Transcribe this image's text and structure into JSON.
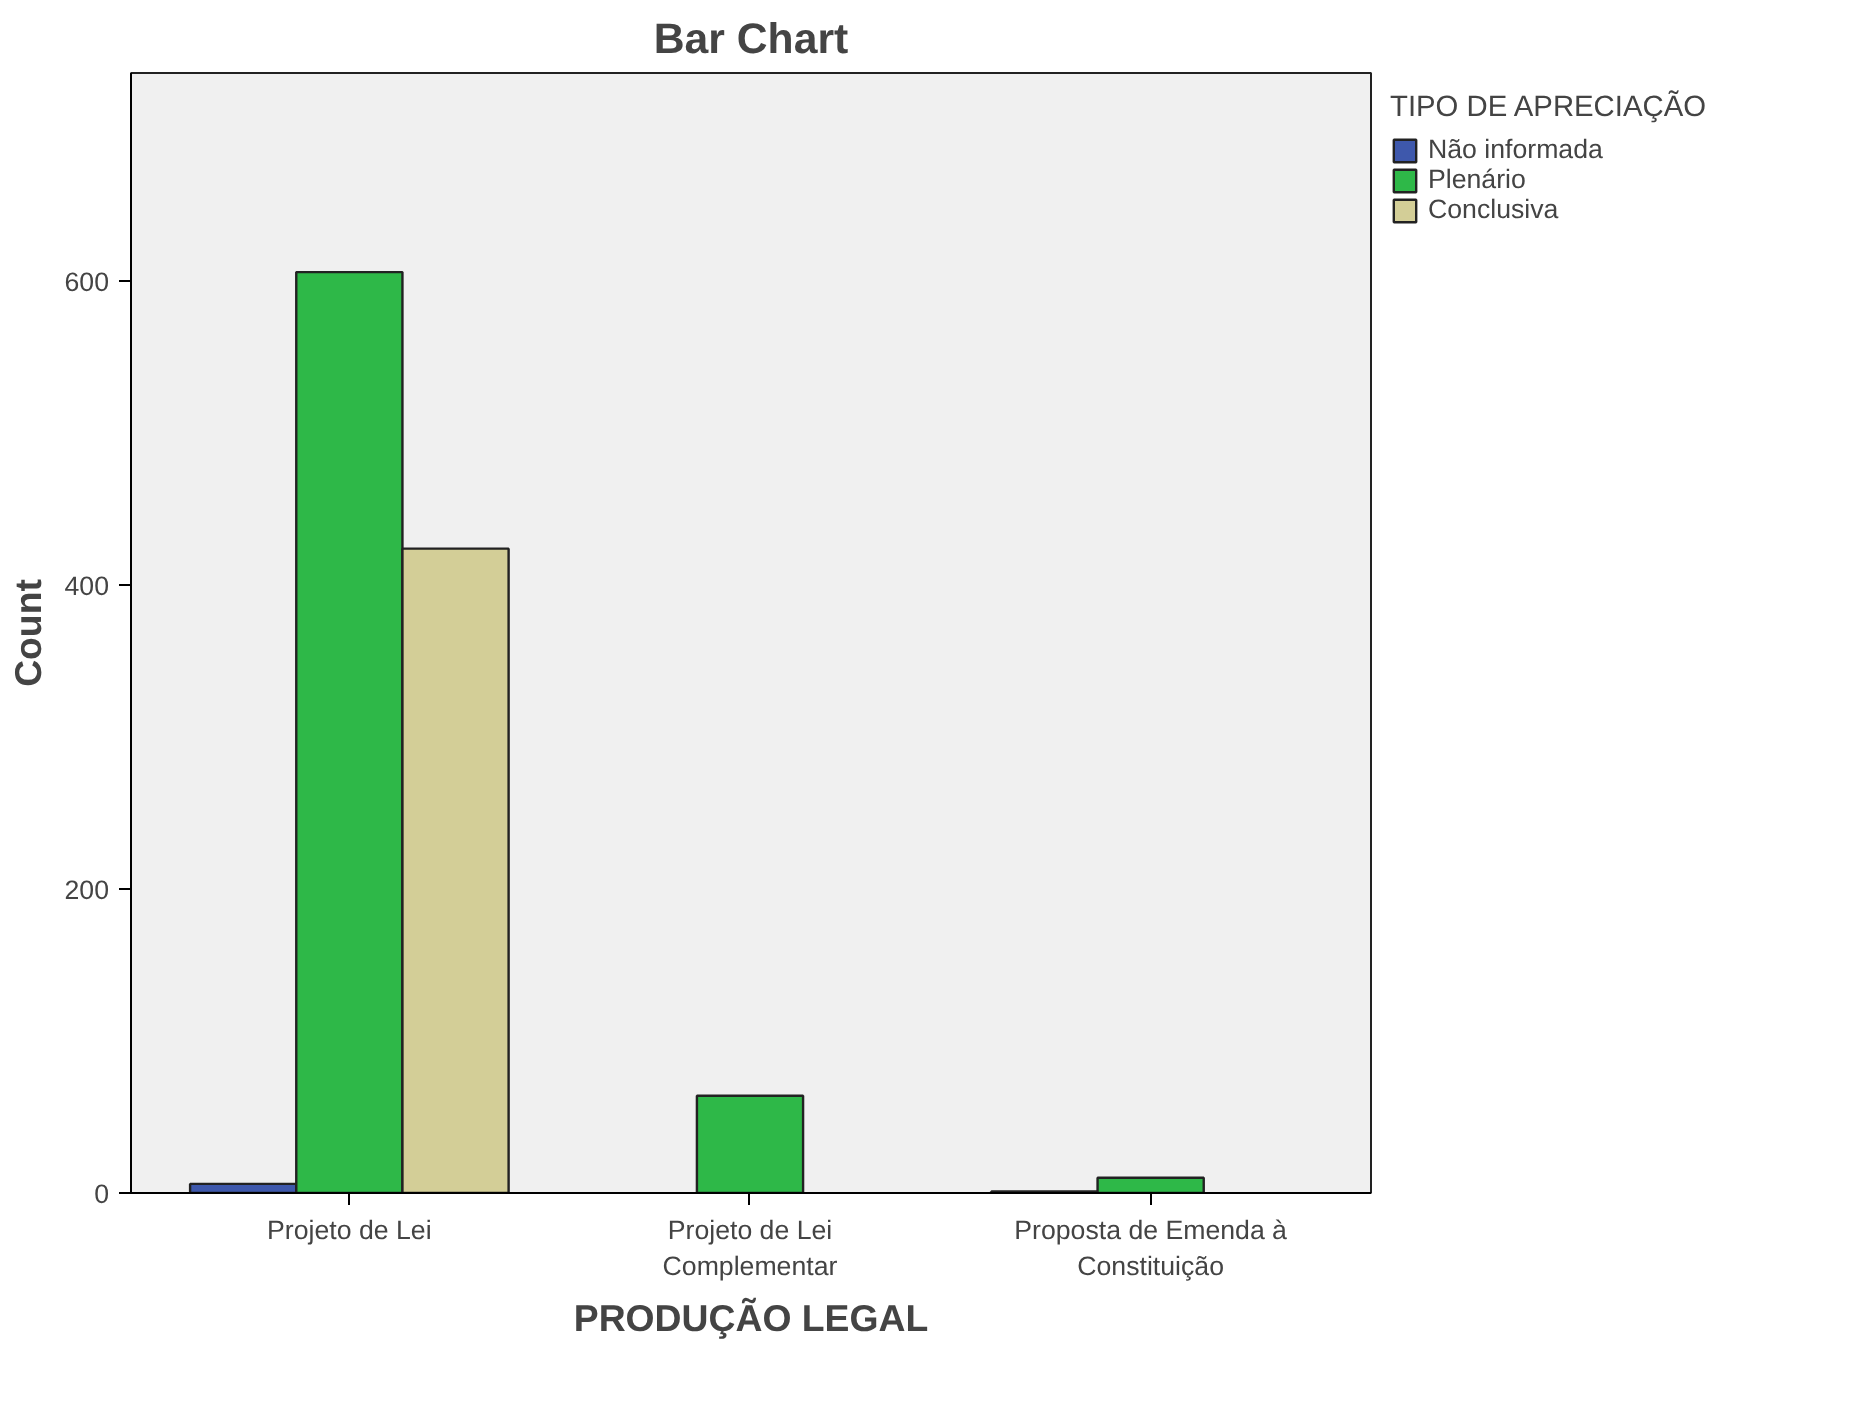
{
  "chart_data": {
    "type": "bar",
    "title": "Bar Chart",
    "xlabel": "PRODUÇÃO LEGAL",
    "ylabel": "Count",
    "legend_title": "TIPO DE APRECIAÇÃO",
    "categories": [
      "Projeto de Lei",
      "Projeto de Lei Complementar",
      "Proposta de Emenda à Constituição"
    ],
    "series": [
      {
        "name": "Não informada",
        "color": "#3e58ac",
        "values": [
          6,
          null,
          1
        ]
      },
      {
        "name": "Plenário",
        "color": "#2eb848",
        "values": [
          606,
          64,
          10
        ]
      },
      {
        "name": "Conclusiva",
        "color": "#d3ce97",
        "values": [
          424,
          null,
          null
        ]
      }
    ],
    "ylim": [
      0,
      737
    ],
    "yticks": [
      0,
      200,
      400,
      600
    ],
    "grid": false,
    "legend": "top right"
  }
}
